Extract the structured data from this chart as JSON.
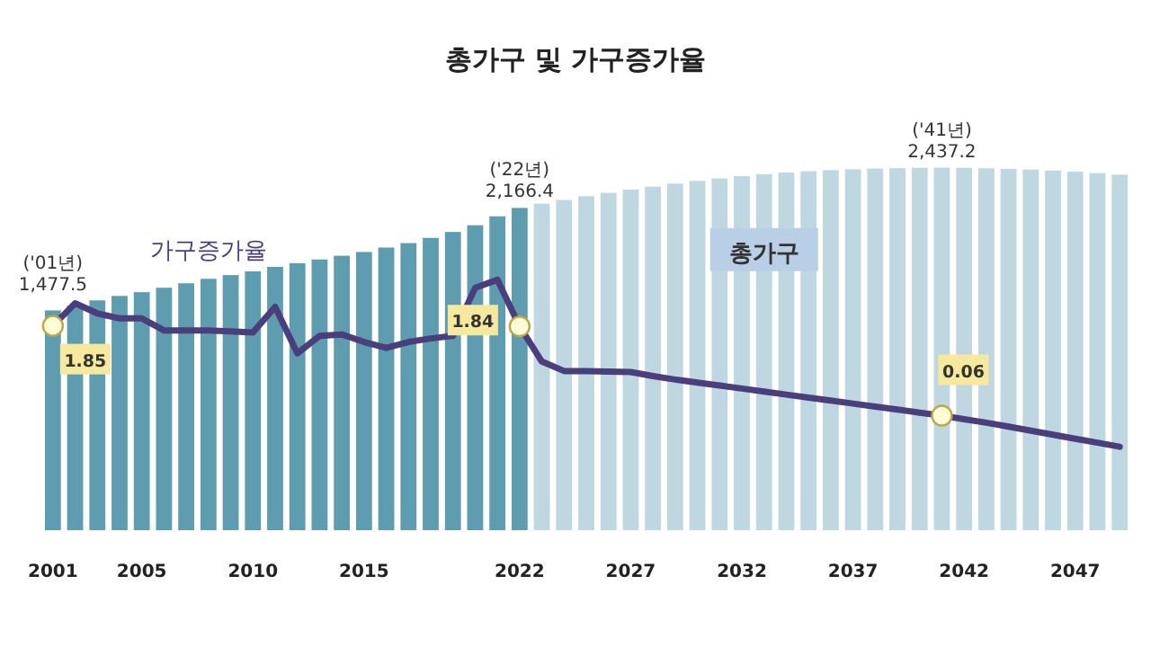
{
  "chart_data": {
    "type": "bar",
    "title": "총가구 및 가구증가율",
    "categories": [
      "2001",
      null,
      null,
      null,
      "2005",
      null,
      null,
      null,
      null,
      "2010",
      null,
      null,
      null,
      null,
      "2015",
      null,
      null,
      null,
      null,
      null,
      null,
      "2022",
      null,
      null,
      null,
      null,
      "2027",
      null,
      null,
      null,
      null,
      "2032",
      null,
      null,
      null,
      null,
      "2037",
      null,
      null,
      null,
      null,
      "2042",
      null,
      null,
      null,
      null,
      "2047",
      null,
      null
    ],
    "series": [
      {
        "name": "총가구",
        "colors": [
          "#5e9db0",
          "#5e9db0",
          "#5e9db0",
          "#5e9db0",
          "#5e9db0",
          "#5e9db0",
          "#5e9db0",
          "#5e9db0",
          "#5e9db0",
          "#5e9db0",
          "#5e9db0",
          "#5e9db0",
          "#5e9db0",
          "#5e9db0",
          "#5e9db0",
          "#5e9db0",
          "#5e9db0",
          "#5e9db0",
          "#5e9db0",
          "#5e9db0",
          "#5e9db0",
          "#5e9db0",
          "#bfd7e0",
          "#bfd7e0",
          "#bfd7e0",
          "#bfd7e0",
          "#bfd7e0",
          "#bfd7e0",
          "#bfd7e0",
          "#bfd7e0",
          "#bfd7e0",
          "#bfd7e0",
          "#bfd7e0",
          "#bfd7e0",
          "#bfd7e0",
          "#bfd7e0",
          "#bfd7e0",
          "#bfd7e0",
          "#bfd7e0",
          "#bfd7e0",
          "#bfd7e0",
          "#bfd7e0",
          "#bfd7e0",
          "#bfd7e0",
          "#bfd7e0",
          "#bfd7e0",
          "#bfd7e0",
          "#bfd7e0",
          "#bfd7e0"
        ],
        "values": [
          1477.5,
          1510,
          1545,
          1575,
          1600,
          1630,
          1660,
          1690,
          1715,
          1740,
          1770,
          1795,
          1820,
          1845,
          1870,
          1900,
          1930,
          1965,
          2005,
          2050,
          2110,
          2166.4,
          2195,
          2220,
          2245,
          2268,
          2290,
          2310,
          2330,
          2348,
          2365,
          2380,
          2393,
          2404,
          2413,
          2420,
          2426,
          2431,
          2434,
          2436,
          2437.2,
          2436,
          2433,
          2429,
          2424,
          2418,
          2410,
          2401,
          2390
        ],
        "value_labels": [
          "('01년) 1,477.5",
          null,
          null,
          null,
          null,
          null,
          null,
          null,
          null,
          null,
          null,
          null,
          null,
          null,
          null,
          null,
          null,
          null,
          null,
          null,
          null,
          "('22년) 2,166.4",
          null,
          null,
          null,
          null,
          null,
          null,
          null,
          null,
          null,
          null,
          null,
          null,
          null,
          null,
          null,
          null,
          null,
          null,
          "('41년) 2,437.2",
          null,
          null,
          null,
          null,
          null,
          null,
          null,
          null
        ]
      },
      {
        "name": "가구증가율",
        "type": "line",
        "axis": "y2",
        "color": "#4a3f7c",
        "values": [
          1.85,
          2.3,
          2.1,
          2.0,
          2.0,
          1.76,
          1.76,
          1.76,
          1.74,
          1.72,
          2.23,
          1.3,
          1.65,
          1.68,
          1.53,
          1.41,
          1.53,
          1.6,
          1.65,
          2.61,
          2.77,
          1.84,
          1.14,
          0.95,
          0.95,
          0.94,
          0.93,
          0.85,
          0.78,
          0.72,
          0.66,
          0.6,
          0.54,
          0.48,
          0.42,
          0.36,
          0.3,
          0.24,
          0.18,
          0.12,
          0.06,
          -0.01,
          -0.08,
          -0.16,
          -0.24,
          -0.32,
          -0.4,
          -0.48,
          -0.56
        ],
        "value_labels": [
          "1.85",
          null,
          null,
          null,
          null,
          null,
          null,
          null,
          null,
          null,
          null,
          null,
          null,
          null,
          null,
          null,
          null,
          null,
          null,
          null,
          null,
          "1.84",
          null,
          null,
          null,
          null,
          null,
          null,
          null,
          null,
          null,
          null,
          null,
          null,
          null,
          null,
          null,
          null,
          null,
          null,
          "0.06",
          null,
          null,
          null,
          null,
          null,
          null,
          null,
          null
        ]
      }
    ],
    "tick_labels": "x"
  }
}
